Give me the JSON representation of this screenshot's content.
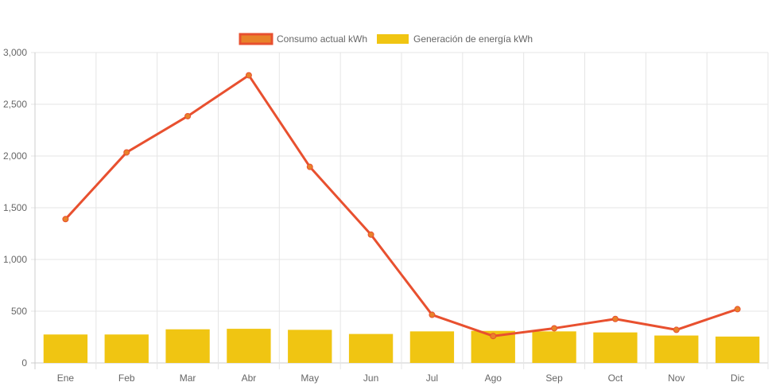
{
  "chart_data": {
    "type": "bar",
    "categories": [
      "Ene",
      "Feb",
      "Mar",
      "Abr",
      "May",
      "Jun",
      "Jul",
      "Ago",
      "Sep",
      "Oct",
      "Nov",
      "Dic"
    ],
    "series": [
      {
        "name": "Consumo actual kWh",
        "type": "line",
        "color": "#e8502f",
        "point_color": "#e8822a",
        "values": [
          1390,
          2035,
          2385,
          2780,
          1895,
          1240,
          465,
          260,
          335,
          425,
          320,
          520
        ]
      },
      {
        "name": "Generación de energía kWh",
        "type": "bar",
        "color": "#f0c512",
        "values": [
          275,
          275,
          325,
          330,
          320,
          280,
          305,
          310,
          305,
          295,
          265,
          255
        ]
      }
    ],
    "yticks": [
      "0",
      "500",
      "1,000",
      "1,500",
      "2,000",
      "2,500",
      "3,000"
    ],
    "ylim": [
      0,
      3000
    ],
    "grid": true,
    "legend_position": "top"
  }
}
